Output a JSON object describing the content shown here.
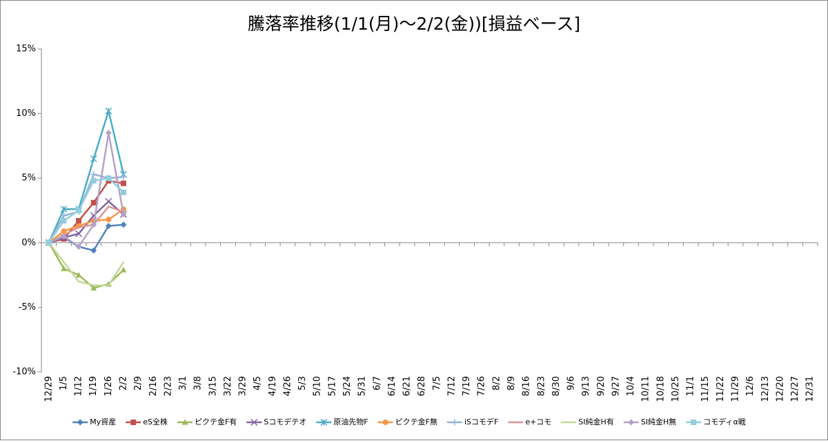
{
  "chart_data": {
    "type": "line",
    "title": "騰落率推移(1/1(月)～2/2(金))[損益ベース]",
    "categories": [
      "12/29",
      "1/5",
      "1/12",
      "1/19",
      "1/26",
      "2/2",
      "2/9",
      "2/16",
      "2/23",
      "3/1",
      "3/8",
      "3/15",
      "3/22",
      "3/29",
      "4/5",
      "4/19",
      "4/26",
      "5/3",
      "5/10",
      "5/17",
      "5/24",
      "5/31",
      "6/7",
      "6/14",
      "6/21",
      "6/28",
      "7/5",
      "7/12",
      "7/19",
      "7/26",
      "8/2",
      "8/9",
      "8/16",
      "8/23",
      "8/30",
      "9/6",
      "9/13",
      "9/20",
      "9/27",
      "10/4",
      "10/11",
      "10/18",
      "10/25",
      "11/1",
      "11/15",
      "11/22",
      "11/29",
      "12/6",
      "12/13",
      "12/20",
      "12/27",
      "12/31"
    ],
    "ylim": [
      -10,
      15
    ],
    "yticks": [
      {
        "value": -10,
        "label": "-10%"
      },
      {
        "value": -5,
        "label": "-5%"
      },
      {
        "value": 0,
        "label": "0%"
      },
      {
        "value": 5,
        "label": "5%"
      },
      {
        "value": 10,
        "label": "10%"
      },
      {
        "value": 15,
        "label": "15%"
      }
    ],
    "grid": false,
    "legend": "bottom",
    "series": [
      {
        "name": "My資産",
        "color": "#4F81BD",
        "marker": "diamond",
        "values": [
          0,
          0.4,
          -0.3,
          -0.6,
          1.3,
          1.4,
          null,
          null,
          null,
          null,
          null,
          null,
          null,
          null,
          null,
          null,
          null,
          null,
          null,
          null,
          null,
          null,
          null,
          null,
          null,
          null,
          null,
          null,
          null,
          null,
          null,
          null,
          null,
          null,
          null,
          null,
          null,
          null,
          null,
          null,
          null,
          null,
          null,
          null,
          null,
          null,
          null,
          null,
          null,
          null,
          null,
          null
        ]
      },
      {
        "name": "eS全株",
        "color": "#C0504D",
        "marker": "square",
        "values": [
          0,
          0.3,
          1.7,
          3.1,
          4.8,
          4.6,
          null,
          null,
          null,
          null,
          null,
          null,
          null,
          null,
          null,
          null,
          null,
          null,
          null,
          null,
          null,
          null,
          null,
          null,
          null,
          null,
          null,
          null,
          null,
          null,
          null,
          null,
          null,
          null,
          null,
          null,
          null,
          null,
          null,
          null,
          null,
          null,
          null,
          null,
          null,
          null,
          null,
          null,
          null,
          null,
          null,
          null
        ]
      },
      {
        "name": "ピクテ金F有",
        "color": "#9BBB59",
        "marker": "triangle",
        "values": [
          0,
          -2.0,
          -2.5,
          -3.5,
          -3.2,
          -2.1,
          null,
          null,
          null,
          null,
          null,
          null,
          null,
          null,
          null,
          null,
          null,
          null,
          null,
          null,
          null,
          null,
          null,
          null,
          null,
          null,
          null,
          null,
          null,
          null,
          null,
          null,
          null,
          null,
          null,
          null,
          null,
          null,
          null,
          null,
          null,
          null,
          null,
          null,
          null,
          null,
          null,
          null,
          null,
          null,
          null,
          null
        ]
      },
      {
        "name": "Sコモデテオ",
        "color": "#8064A2",
        "marker": "x",
        "values": [
          0,
          0.4,
          0.7,
          2.1,
          3.2,
          2.2,
          null,
          null,
          null,
          null,
          null,
          null,
          null,
          null,
          null,
          null,
          null,
          null,
          null,
          null,
          null,
          null,
          null,
          null,
          null,
          null,
          null,
          null,
          null,
          null,
          null,
          null,
          null,
          null,
          null,
          null,
          null,
          null,
          null,
          null,
          null,
          null,
          null,
          null,
          null,
          null,
          null,
          null,
          null,
          null,
          null,
          null
        ]
      },
      {
        "name": "原油先物F",
        "color": "#4BACC6",
        "marker": "star",
        "values": [
          0,
          2.6,
          2.6,
          6.5,
          10.2,
          5.3,
          null,
          null,
          null,
          null,
          null,
          null,
          null,
          null,
          null,
          null,
          null,
          null,
          null,
          null,
          null,
          null,
          null,
          null,
          null,
          null,
          null,
          null,
          null,
          null,
          null,
          null,
          null,
          null,
          null,
          null,
          null,
          null,
          null,
          null,
          null,
          null,
          null,
          null,
          null,
          null,
          null,
          null,
          null,
          null,
          null,
          null
        ]
      },
      {
        "name": "ピクテ金F無",
        "color": "#F79646",
        "marker": "circle",
        "values": [
          0,
          0.9,
          1.3,
          1.7,
          1.8,
          2.6,
          null,
          null,
          null,
          null,
          null,
          null,
          null,
          null,
          null,
          null,
          null,
          null,
          null,
          null,
          null,
          null,
          null,
          null,
          null,
          null,
          null,
          null,
          null,
          null,
          null,
          null,
          null,
          null,
          null,
          null,
          null,
          null,
          null,
          null,
          null,
          null,
          null,
          null,
          null,
          null,
          null,
          null,
          null,
          null,
          null,
          null
        ]
      },
      {
        "name": "iSコモデF",
        "color": "#95B3D7",
        "marker": "plus",
        "values": [
          0,
          2.1,
          2.4,
          5.3,
          5.0,
          5.1,
          null,
          null,
          null,
          null,
          null,
          null,
          null,
          null,
          null,
          null,
          null,
          null,
          null,
          null,
          null,
          null,
          null,
          null,
          null,
          null,
          null,
          null,
          null,
          null,
          null,
          null,
          null,
          null,
          null,
          null,
          null,
          null,
          null,
          null,
          null,
          null,
          null,
          null,
          null,
          null,
          null,
          null,
          null,
          null,
          null,
          null
        ]
      },
      {
        "name": "e+コモ",
        "color": "#D99694",
        "marker": "none",
        "values": [
          0,
          0.6,
          1.2,
          1.4,
          2.8,
          2.4,
          null,
          null,
          null,
          null,
          null,
          null,
          null,
          null,
          null,
          null,
          null,
          null,
          null,
          null,
          null,
          null,
          null,
          null,
          null,
          null,
          null,
          null,
          null,
          null,
          null,
          null,
          null,
          null,
          null,
          null,
          null,
          null,
          null,
          null,
          null,
          null,
          null,
          null,
          null,
          null,
          null,
          null,
          null,
          null,
          null,
          null
        ]
      },
      {
        "name": "SI純金H有",
        "color": "#C3D69B",
        "marker": "none",
        "values": [
          0,
          -1.5,
          -3.0,
          -3.3,
          -3.3,
          -1.5,
          null,
          null,
          null,
          null,
          null,
          null,
          null,
          null,
          null,
          null,
          null,
          null,
          null,
          null,
          null,
          null,
          null,
          null,
          null,
          null,
          null,
          null,
          null,
          null,
          null,
          null,
          null,
          null,
          null,
          null,
          null,
          null,
          null,
          null,
          null,
          null,
          null,
          null,
          null,
          null,
          null,
          null,
          null,
          null,
          null,
          null
        ]
      },
      {
        "name": "SI純金H無",
        "color": "#B3A2C7",
        "marker": "diamond",
        "values": [
          0,
          0.5,
          -0.3,
          1.4,
          8.5,
          2.2,
          null,
          null,
          null,
          null,
          null,
          null,
          null,
          null,
          null,
          null,
          null,
          null,
          null,
          null,
          null,
          null,
          null,
          null,
          null,
          null,
          null,
          null,
          null,
          null,
          null,
          null,
          null,
          null,
          null,
          null,
          null,
          null,
          null,
          null,
          null,
          null,
          null,
          null,
          null,
          null,
          null,
          null,
          null,
          null,
          null,
          null
        ]
      },
      {
        "name": "コモディα戦",
        "color": "#93CDDD",
        "marker": "square",
        "values": [
          0,
          1.7,
          2.5,
          4.8,
          5.0,
          3.9,
          null,
          null,
          null,
          null,
          null,
          null,
          null,
          null,
          null,
          null,
          null,
          null,
          null,
          null,
          null,
          null,
          null,
          null,
          null,
          null,
          null,
          null,
          null,
          null,
          null,
          null,
          null,
          null,
          null,
          null,
          null,
          null,
          null,
          null,
          null,
          null,
          null,
          null,
          null,
          null,
          null,
          null,
          null,
          null,
          null,
          null
        ]
      }
    ]
  }
}
